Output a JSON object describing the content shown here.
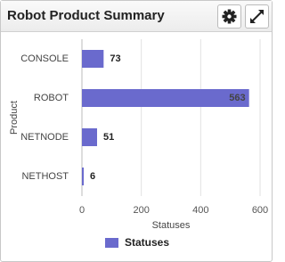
{
  "chart_data": {
    "type": "bar",
    "orientation": "horizontal",
    "title": "Robot Product Summary",
    "categories": [
      "CONSOLE",
      "ROBOT",
      "NETNODE",
      "NETHOST"
    ],
    "series": [
      {
        "name": "Statuses",
        "color": "#6a6acd",
        "values": [
          73,
          563,
          51,
          6
        ]
      }
    ],
    "x_label": "Statuses",
    "y_label": "Product",
    "xlim": [
      0,
      600
    ],
    "xticks": [
      0,
      200,
      400,
      600
    ],
    "grid": true
  }
}
